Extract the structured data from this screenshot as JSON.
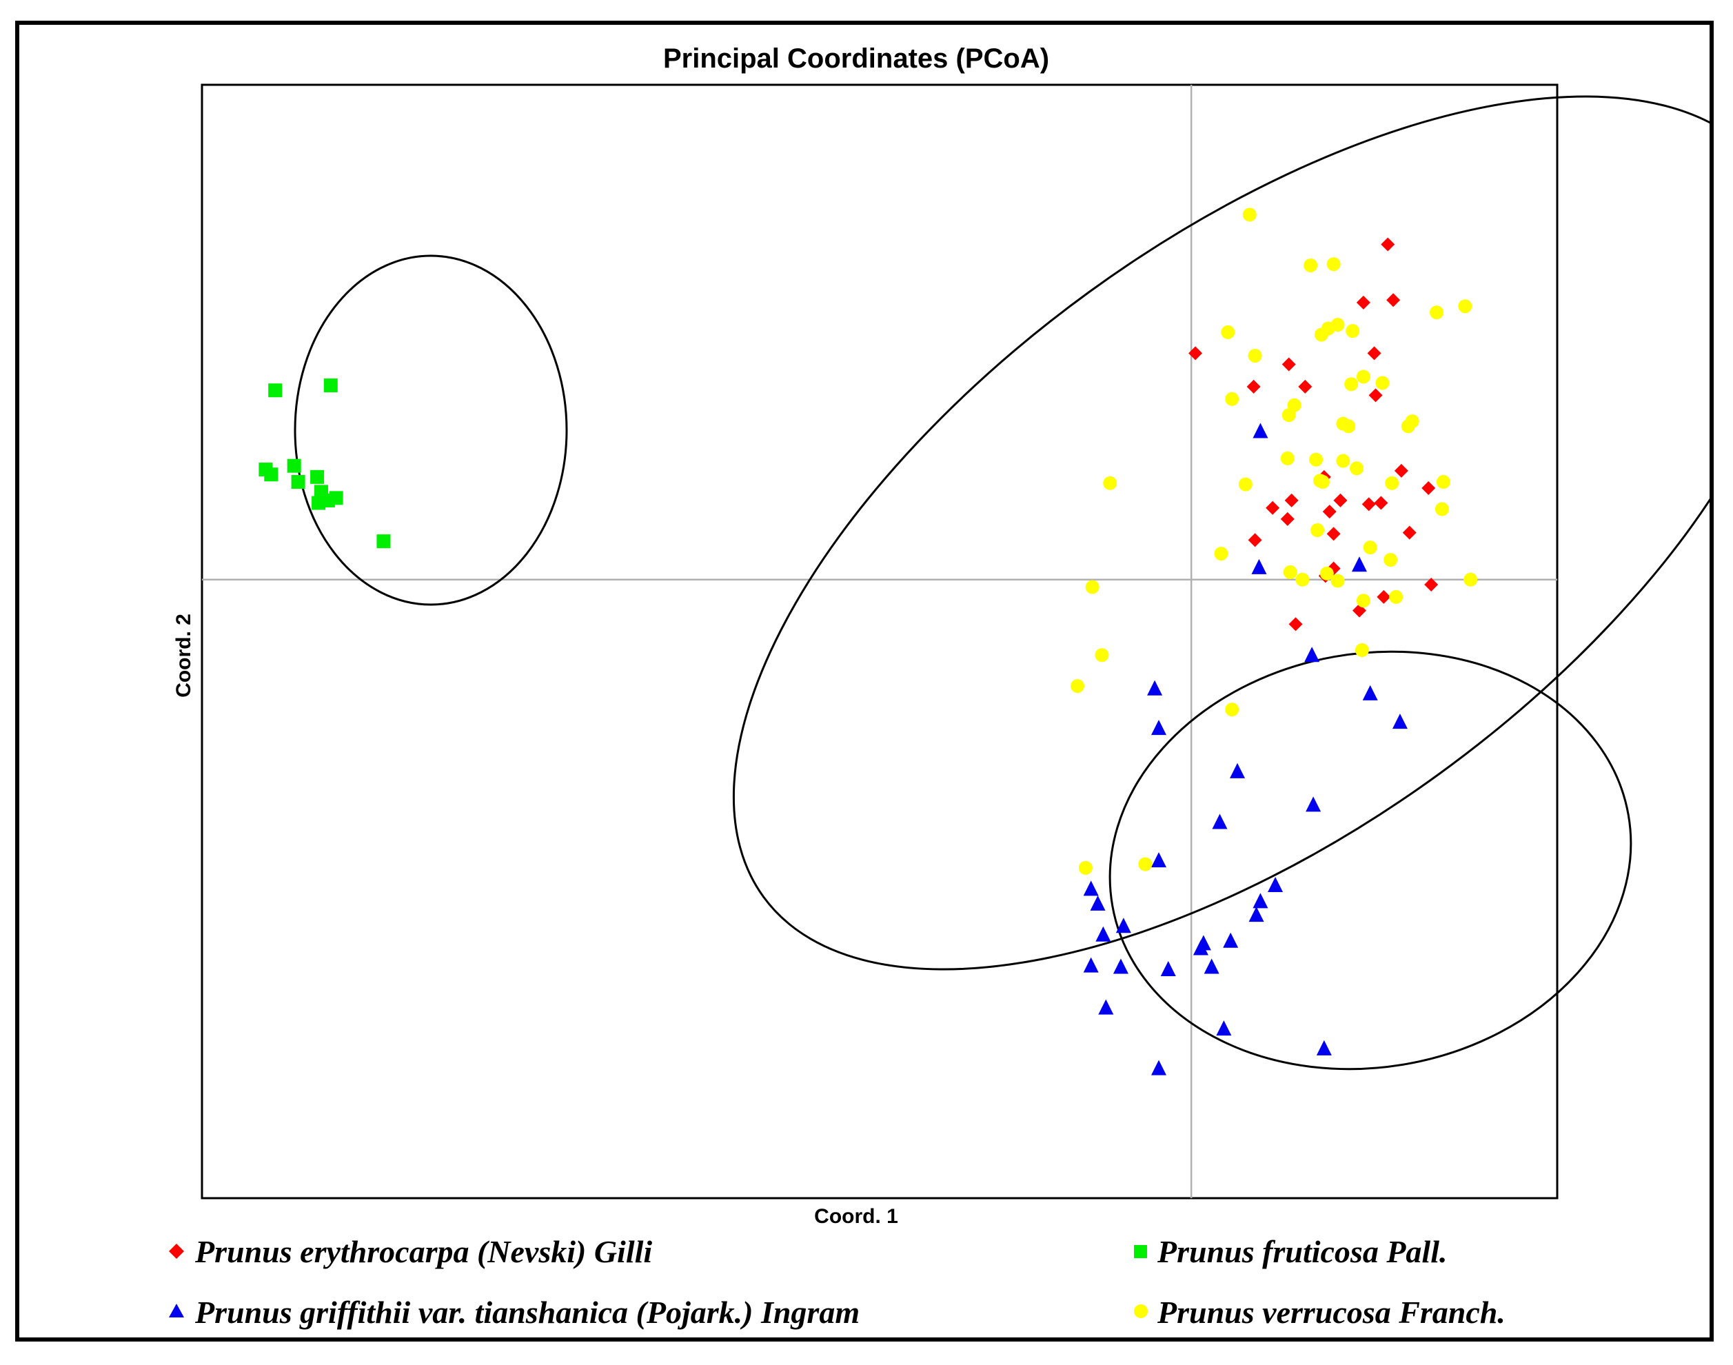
{
  "chart_data": {
    "type": "scatter",
    "title": "Principal Coordinates (PCoA)",
    "xlabel": "Coord. 1",
    "ylabel": "Coord. 2",
    "xlim": [
      -0.73,
      0.27
    ],
    "ylim": [
      -0.5,
      0.4
    ],
    "grid": false,
    "zero_lines": true,
    "legend_position": "bottom",
    "series": [
      {
        "name": "Prunus erythrocarpa (Nevski) Gilli",
        "color": "#ff0000",
        "marker": "diamond",
        "points": [
          [
            0.145,
            0.271
          ],
          [
            0.127,
            0.224
          ],
          [
            0.135,
            0.183
          ],
          [
            0.003,
            0.183
          ],
          [
            0.046,
            0.156
          ],
          [
            0.072,
            0.174
          ],
          [
            0.084,
            0.156
          ],
          [
            0.136,
            0.149
          ],
          [
            0.149,
            0.226
          ],
          [
            0.155,
            0.088
          ],
          [
            0.098,
            0.083
          ],
          [
            0.11,
            0.064
          ],
          [
            0.131,
            0.061
          ],
          [
            0.102,
            0.055
          ],
          [
            0.105,
            0.037
          ],
          [
            0.161,
            0.038
          ],
          [
            0.06,
            0.058
          ],
          [
            0.074,
            0.064
          ],
          [
            0.071,
            0.049
          ],
          [
            0.14,
            0.062
          ],
          [
            0.047,
            0.032
          ],
          [
            0.175,
            0.074
          ],
          [
            0.177,
            -0.004
          ],
          [
            0.099,
            0.003
          ],
          [
            0.105,
            0.009
          ],
          [
            0.124,
            -0.025
          ],
          [
            0.142,
            -0.014
          ],
          [
            0.077,
            -0.036
          ]
        ]
      },
      {
        "name": "Prunus fruticosa Pall.",
        "color": "#00ee00",
        "marker": "square",
        "points": [
          [
            -0.635,
            0.157
          ],
          [
            -0.676,
            0.153
          ],
          [
            -0.683,
            0.089
          ],
          [
            -0.679,
            0.085
          ],
          [
            -0.662,
            0.092
          ],
          [
            -0.659,
            0.079
          ],
          [
            -0.645,
            0.083
          ],
          [
            -0.642,
            0.071
          ],
          [
            -0.637,
            0.064
          ],
          [
            -0.631,
            0.066
          ],
          [
            -0.644,
            0.062
          ],
          [
            -0.596,
            0.031
          ]
        ]
      },
      {
        "name": "Prunus griffithii var. tianshanica (Pojark.) Ingram",
        "color": "#0000ee",
        "marker": "triangle",
        "points": [
          [
            0.051,
            0.12
          ],
          [
            0.05,
            0.01
          ],
          [
            0.124,
            0.012
          ],
          [
            0.089,
            -0.061
          ],
          [
            0.132,
            -0.092
          ],
          [
            -0.027,
            -0.088
          ],
          [
            0.154,
            -0.115
          ],
          [
            -0.024,
            -0.12
          ],
          [
            0.034,
            -0.155
          ],
          [
            0.09,
            -0.182
          ],
          [
            0.021,
            -0.196
          ],
          [
            -0.024,
            -0.227
          ],
          [
            0.062,
            -0.247
          ],
          [
            0.051,
            -0.26
          ],
          [
            0.048,
            -0.271
          ],
          [
            -0.074,
            -0.25
          ],
          [
            -0.069,
            -0.262
          ],
          [
            -0.065,
            -0.287
          ],
          [
            -0.05,
            -0.28
          ],
          [
            -0.074,
            -0.312
          ],
          [
            -0.052,
            -0.313
          ],
          [
            -0.017,
            -0.315
          ],
          [
            0.009,
            -0.294
          ],
          [
            0.007,
            -0.298
          ],
          [
            0.029,
            -0.292
          ],
          [
            0.015,
            -0.313
          ],
          [
            -0.063,
            -0.346
          ],
          [
            0.024,
            -0.363
          ],
          [
            0.098,
            -0.379
          ],
          [
            -0.024,
            -0.395
          ]
        ]
      },
      {
        "name": "Prunus verrucosa Franch.",
        "color": "#ffff00",
        "marker": "circle",
        "points": [
          [
            0.043,
            0.295
          ],
          [
            0.088,
            0.254
          ],
          [
            0.105,
            0.255
          ],
          [
            0.101,
            0.203
          ],
          [
            0.119,
            0.201
          ],
          [
            0.108,
            0.206
          ],
          [
            0.096,
            0.198
          ],
          [
            0.181,
            0.216
          ],
          [
            0.202,
            0.221
          ],
          [
            0.027,
            0.2
          ],
          [
            0.047,
            0.181
          ],
          [
            0.03,
            0.146
          ],
          [
            0.076,
            0.141
          ],
          [
            0.118,
            0.158
          ],
          [
            0.127,
            0.164
          ],
          [
            0.141,
            0.159
          ],
          [
            0.072,
            0.133
          ],
          [
            0.112,
            0.126
          ],
          [
            0.116,
            0.124
          ],
          [
            0.16,
            0.124
          ],
          [
            0.163,
            0.128
          ],
          [
            0.071,
            0.098
          ],
          [
            0.092,
            0.097
          ],
          [
            0.112,
            0.096
          ],
          [
            0.097,
            0.079
          ],
          [
            0.095,
            0.08
          ],
          [
            0.122,
            0.09
          ],
          [
            0.04,
            0.077
          ],
          [
            0.148,
            0.078
          ],
          [
            0.186,
            0.079
          ],
          [
            0.185,
            0.057
          ],
          [
            0.093,
            0.04
          ],
          [
            0.022,
            0.021
          ],
          [
            0.132,
            0.026
          ],
          [
            0.147,
            0.016
          ],
          [
            0.073,
            0.006
          ],
          [
            0.082,
            0.0
          ],
          [
            0.1,
            0.005
          ],
          [
            0.108,
            -0.001
          ],
          [
            0.127,
            -0.017
          ],
          [
            0.151,
            -0.014
          ],
          [
            0.206,
            0.0
          ],
          [
            -0.06,
            0.078
          ],
          [
            -0.073,
            -0.006
          ],
          [
            -0.066,
            -0.061
          ],
          [
            -0.084,
            -0.086
          ],
          [
            0.126,
            -0.057
          ],
          [
            0.03,
            -0.105
          ],
          [
            -0.078,
            -0.233
          ],
          [
            -0.034,
            -0.23
          ]
        ]
      }
    ]
  }
}
